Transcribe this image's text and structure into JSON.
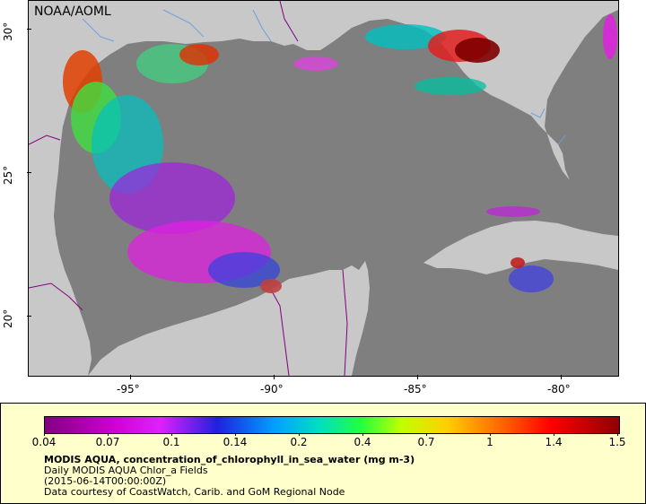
{
  "map": {
    "credit": "NOAA/AOML",
    "lat_labels": [
      "30°",
      "25°",
      "20°"
    ],
    "lon_labels": [
      "-95°",
      "-90°",
      "-85°",
      "-80°"
    ],
    "colors": {
      "ocean_no_data": "#7f7f7f",
      "land": "#c8c8c8",
      "river": "#6aa0e0",
      "border": "#800080"
    }
  },
  "legend": {
    "colorbar_ticks": [
      "0.04",
      "0.07",
      "0.1",
      "0.14",
      "0.2",
      "0.4",
      "0.7",
      "1",
      "1.4",
      "1.5"
    ],
    "title": "MODIS AQUA, concentration_of_chlorophyll_in_sea_water (mg m-3)",
    "subtitle": "Daily MODIS AQUA Chlor_a Fields",
    "time": "(2015-06-14T00:00:00Z)",
    "courtesy": "Data courtesy of CoastWatch, Carib. and GoM Regional Node"
  }
}
